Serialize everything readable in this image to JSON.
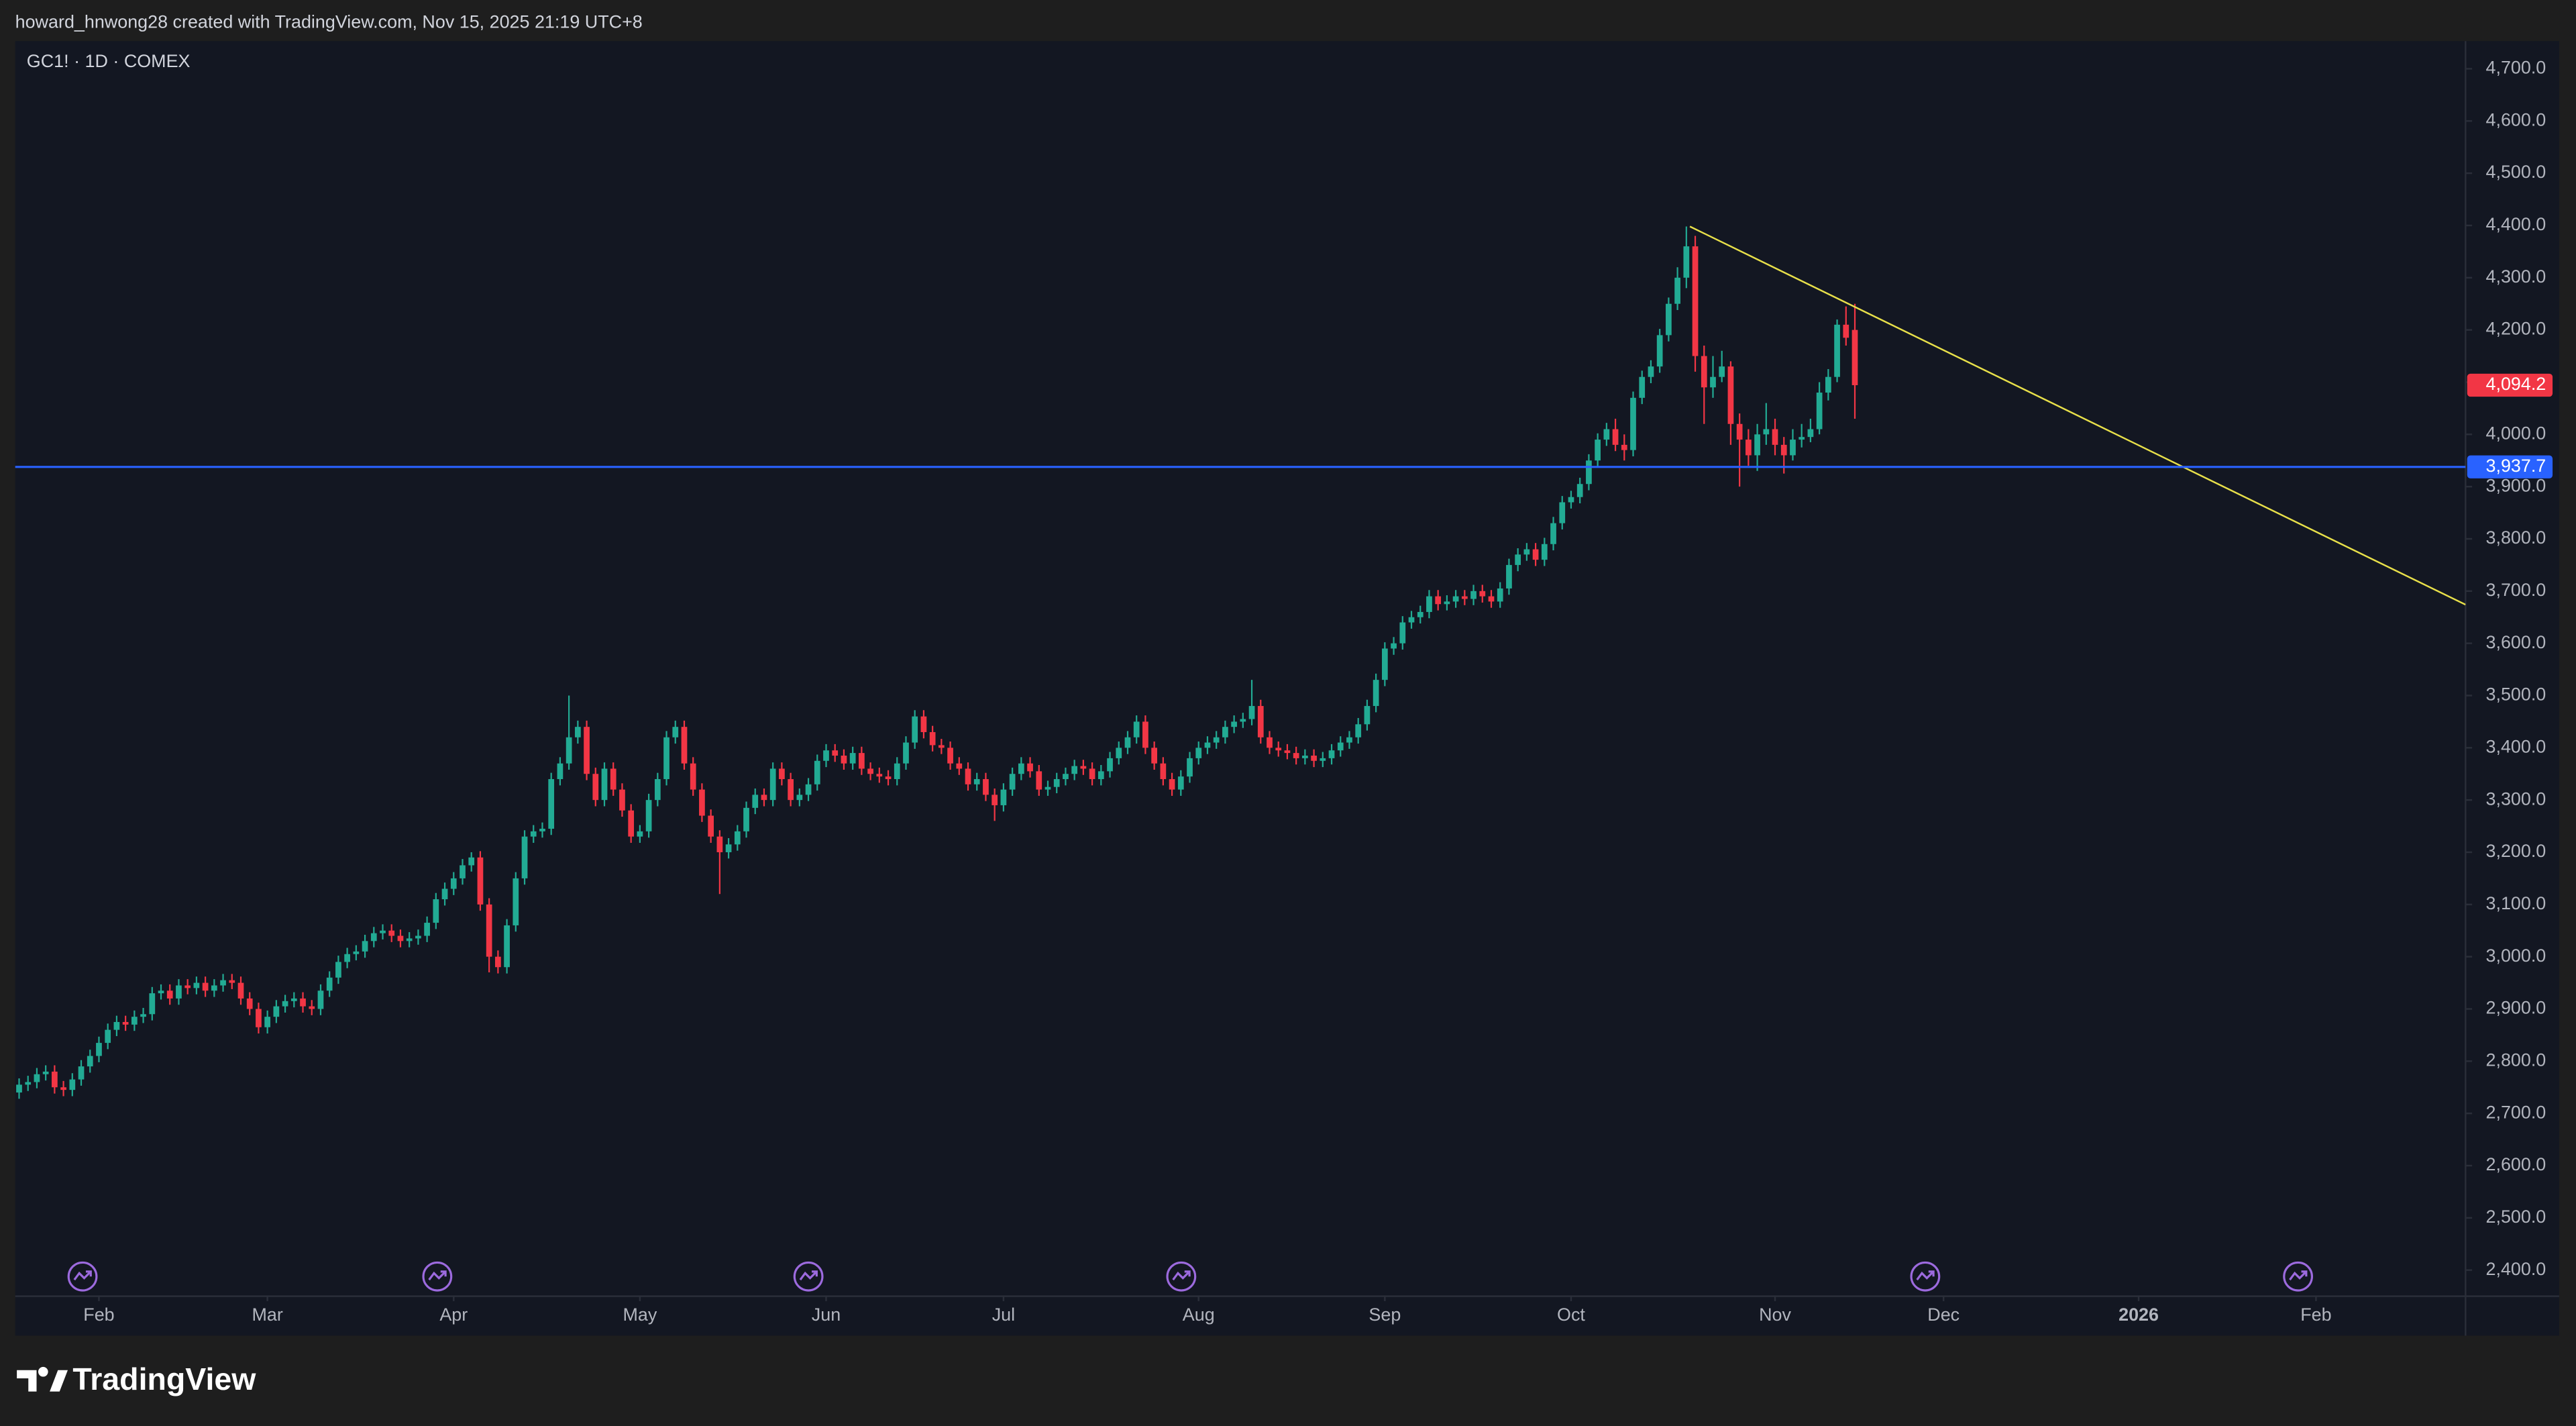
{
  "header": {
    "text": "howard_hnwong28 created with TradingView.com, Nov 15, 2025 21:19 UTC+8"
  },
  "footer": {
    "brand": "TradingView"
  },
  "chart_data": {
    "type": "candlestick",
    "title": "GC1! · 1D · COMEX",
    "up_color": "#22ab94",
    "down_color": "#f23645",
    "grid": false,
    "xlim": [
      -0.44,
      275.86
    ],
    "ylim": [
      2350,
      4753
    ],
    "xticks": [
      {
        "value": 9,
        "label": "Feb"
      },
      {
        "value": 28,
        "label": "Mar"
      },
      {
        "value": 49,
        "label": "Apr"
      },
      {
        "value": 70,
        "label": "May"
      },
      {
        "value": 91,
        "label": "Jun"
      },
      {
        "value": 111,
        "label": "Jul"
      },
      {
        "value": 133,
        "label": "Aug"
      },
      {
        "value": 154,
        "label": "Sep"
      },
      {
        "value": 175,
        "label": "Oct"
      },
      {
        "value": 198,
        "label": "Nov"
      },
      {
        "value": 217,
        "label": "Dec"
      },
      {
        "value": 239,
        "label": "2026"
      },
      {
        "value": 259,
        "label": "Feb"
      }
    ],
    "yticks": [
      {
        "value": 2400,
        "label": "2,400.0"
      },
      {
        "value": 2500,
        "label": "2,500.0"
      },
      {
        "value": 2600,
        "label": "2,600.0"
      },
      {
        "value": 2700,
        "label": "2,700.0"
      },
      {
        "value": 2800,
        "label": "2,800.0"
      },
      {
        "value": 2900,
        "label": "2,900.0"
      },
      {
        "value": 3000,
        "label": "3,000.0"
      },
      {
        "value": 3100,
        "label": "3,100.0"
      },
      {
        "value": 3200,
        "label": "3,200.0"
      },
      {
        "value": 3300,
        "label": "3,300.0"
      },
      {
        "value": 3400,
        "label": "3,400.0"
      },
      {
        "value": 3500,
        "label": "3,500.0"
      },
      {
        "value": 3600,
        "label": "3,600.0"
      },
      {
        "value": 3700,
        "label": "3,700.0"
      },
      {
        "value": 3800,
        "label": "3,800.0"
      },
      {
        "value": 3900,
        "label": "3,900.0"
      },
      {
        "value": 4000,
        "label": "4,000.0"
      },
      {
        "value": 4100,
        "label": "4,100.0"
      },
      {
        "value": 4200,
        "label": "4,200.0"
      },
      {
        "value": 4300,
        "label": "4,300.0"
      },
      {
        "value": 4400,
        "label": "4,400.0"
      },
      {
        "value": 4500,
        "label": "4,500.0"
      },
      {
        "value": 4600,
        "label": "4,600.0"
      },
      {
        "value": 4700,
        "label": "4,700.0"
      }
    ],
    "open": [
      2740,
      2755,
      2760,
      2775,
      2780,
      2750,
      2745,
      2765,
      2790,
      2810,
      2835,
      2860,
      2875,
      2870,
      2885,
      2890,
      2930,
      2935,
      2920,
      2945,
      2940,
      2950,
      2935,
      2945,
      2955,
      2950,
      2920,
      2900,
      2865,
      2885,
      2905,
      2915,
      2920,
      2905,
      2900,
      2935,
      2960,
      2990,
      3005,
      3010,
      3030,
      3045,
      3050,
      3040,
      3030,
      3035,
      3040,
      3065,
      3110,
      3130,
      3150,
      3175,
      3190,
      3100,
      3000,
      2980,
      3060,
      3150,
      3230,
      3240,
      3245,
      3340,
      3370,
      3420,
      3440,
      3350,
      3300,
      3360,
      3320,
      3280,
      3230,
      3240,
      3300,
      3340,
      3420,
      3440,
      3370,
      3320,
      3270,
      3230,
      3200,
      3215,
      3240,
      3285,
      3310,
      3300,
      3360,
      3340,
      3300,
      3310,
      3330,
      3375,
      3395,
      3385,
      3370,
      3390,
      3360,
      3350,
      3345,
      3340,
      3370,
      3410,
      3460,
      3430,
      3405,
      3400,
      3370,
      3360,
      3330,
      3340,
      3310,
      3290,
      3320,
      3350,
      3370,
      3355,
      3320,
      3325,
      3340,
      3350,
      3365,
      3360,
      3340,
      3355,
      3380,
      3400,
      3420,
      3450,
      3400,
      3370,
      3340,
      3320,
      3345,
      3380,
      3400,
      3410,
      3420,
      3440,
      3450,
      3455,
      3480,
      3420,
      3400,
      3395,
      3390,
      3380,
      3385,
      3375,
      3380,
      3395,
      3410,
      3420,
      3445,
      3480,
      3530,
      3590,
      3600,
      3640,
      3650,
      3660,
      3690,
      3675,
      3680,
      3690,
      3685,
      3700,
      3690,
      3680,
      3705,
      3750,
      3770,
      3780,
      3760,
      3790,
      3830,
      3870,
      3880,
      3905,
      3950,
      3990,
      4010,
      3980,
      3970,
      4070,
      4110,
      4130,
      4190,
      4250,
      4300,
      4360,
      4150,
      4090,
      4110,
      4130,
      4020,
      3990,
      3960,
      4000,
      4010,
      3980,
      3960,
      3990,
      3995,
      4010,
      4080,
      4110,
      4210,
      4200
    ],
    "high": [
      2767,
      2772,
      2787,
      2792,
      2792,
      2762,
      2777,
      2802,
      2822,
      2847,
      2872,
      2887,
      2887,
      2897,
      2902,
      2942,
      2947,
      2947,
      2957,
      2957,
      2962,
      2962,
      2957,
      2967,
      2967,
      2962,
      2932,
      2912,
      2897,
      2917,
      2927,
      2932,
      2932,
      2917,
      2947,
      2972,
      3002,
      3017,
      3022,
      3042,
      3057,
      3062,
      3062,
      3052,
      3047,
      3052,
      3077,
      3122,
      3142,
      3162,
      3187,
      3200,
      3202,
      3112,
      3012,
      3072,
      3162,
      3242,
      3252,
      3257,
      3352,
      3382,
      3500,
      3452,
      3452,
      3362,
      3372,
      3372,
      3332,
      3292,
      3252,
      3312,
      3352,
      3432,
      3452,
      3452,
      3382,
      3332,
      3282,
      3242,
      3227,
      3252,
      3297,
      3322,
      3322,
      3372,
      3372,
      3352,
      3322,
      3342,
      3387,
      3407,
      3407,
      3397,
      3402,
      3402,
      3372,
      3362,
      3357,
      3382,
      3422,
      3472,
      3472,
      3442,
      3417,
      3412,
      3382,
      3372,
      3352,
      3352,
      3322,
      3332,
      3362,
      3382,
      3382,
      3367,
      3337,
      3352,
      3362,
      3377,
      3377,
      3372,
      3367,
      3392,
      3412,
      3432,
      3462,
      3462,
      3412,
      3382,
      3352,
      3357,
      3392,
      3412,
      3422,
      3432,
      3452,
      3462,
      3467,
      3530,
      3492,
      3432,
      3412,
      3407,
      3402,
      3397,
      3397,
      3392,
      3407,
      3422,
      3432,
      3457,
      3492,
      3542,
      3602,
      3612,
      3652,
      3662,
      3672,
      3702,
      3702,
      3692,
      3702,
      3702,
      3712,
      3712,
      3702,
      3717,
      3762,
      3782,
      3792,
      3792,
      3802,
      3842,
      3882,
      3892,
      3917,
      3962,
      4002,
      4022,
      4030,
      4000,
      4082,
      4122,
      4142,
      4202,
      4262,
      4320,
      4398,
      4380,
      4170,
      4150,
      4160,
      4140,
      4040,
      4010,
      4020,
      4060,
      4030,
      3995,
      4010,
      4020,
      4030,
      4100,
      4125,
      4220,
      4245,
      4250
    ],
    "low": [
      2728,
      2743,
      2748,
      2763,
      2738,
      2733,
      2733,
      2753,
      2778,
      2798,
      2823,
      2848,
      2858,
      2858,
      2873,
      2878,
      2918,
      2908,
      2908,
      2928,
      2928,
      2923,
      2923,
      2933,
      2938,
      2908,
      2888,
      2853,
      2853,
      2873,
      2893,
      2903,
      2893,
      2888,
      2888,
      2923,
      2948,
      2978,
      2993,
      2998,
      3018,
      3033,
      3028,
      3018,
      3018,
      3023,
      3028,
      3053,
      3098,
      3118,
      3138,
      3163,
      3088,
      2970,
      2968,
      2968,
      3048,
      3138,
      3218,
      3228,
      3233,
      3328,
      3358,
      3408,
      3338,
      3288,
      3288,
      3308,
      3268,
      3218,
      3218,
      3228,
      3288,
      3328,
      3408,
      3358,
      3308,
      3258,
      3218,
      3120,
      3188,
      3203,
      3228,
      3273,
      3288,
      3288,
      3328,
      3288,
      3288,
      3298,
      3318,
      3363,
      3373,
      3358,
      3358,
      3348,
      3338,
      3333,
      3328,
      3328,
      3358,
      3398,
      3418,
      3393,
      3388,
      3358,
      3348,
      3318,
      3318,
      3298,
      3260,
      3278,
      3308,
      3338,
      3343,
      3308,
      3308,
      3313,
      3328,
      3338,
      3348,
      3328,
      3328,
      3343,
      3368,
      3388,
      3408,
      3388,
      3358,
      3328,
      3308,
      3308,
      3333,
      3368,
      3388,
      3398,
      3408,
      3428,
      3438,
      3443,
      3408,
      3388,
      3383,
      3378,
      3368,
      3368,
      3363,
      3363,
      3368,
      3383,
      3398,
      3408,
      3433,
      3468,
      3518,
      3578,
      3588,
      3628,
      3638,
      3648,
      3663,
      3663,
      3668,
      3673,
      3673,
      3678,
      3668,
      3668,
      3693,
      3738,
      3758,
      3748,
      3748,
      3778,
      3818,
      3858,
      3868,
      3893,
      3938,
      3978,
      3968,
      3950,
      3958,
      4058,
      4098,
      4118,
      4178,
      4238,
      4280,
      4120,
      4020,
      4070,
      4100,
      3980,
      3900,
      3940,
      3930,
      3980,
      3960,
      3925,
      3950,
      3975,
      3985,
      4000,
      4065,
      4100,
      4170,
      4030
    ],
    "close": [
      2755,
      2760,
      2775,
      2780,
      2750,
      2745,
      2765,
      2790,
      2810,
      2835,
      2860,
      2875,
      2870,
      2885,
      2890,
      2930,
      2935,
      2920,
      2945,
      2940,
      2950,
      2935,
      2945,
      2955,
      2950,
      2920,
      2900,
      2865,
      2885,
      2905,
      2915,
      2920,
      2905,
      2900,
      2935,
      2960,
      2990,
      3005,
      3010,
      3030,
      3045,
      3050,
      3040,
      3030,
      3035,
      3040,
      3065,
      3110,
      3130,
      3150,
      3175,
      3190,
      3100,
      3000,
      2980,
      3060,
      3150,
      3230,
      3240,
      3245,
      3340,
      3370,
      3420,
      3440,
      3350,
      3300,
      3360,
      3320,
      3280,
      3230,
      3240,
      3300,
      3340,
      3420,
      3440,
      3370,
      3320,
      3270,
      3230,
      3200,
      3215,
      3240,
      3285,
      3310,
      3300,
      3360,
      3340,
      3300,
      3310,
      3330,
      3375,
      3395,
      3385,
      3370,
      3390,
      3360,
      3350,
      3345,
      3340,
      3370,
      3410,
      3460,
      3430,
      3405,
      3400,
      3370,
      3360,
      3330,
      3340,
      3310,
      3290,
      3320,
      3350,
      3370,
      3355,
      3320,
      3325,
      3340,
      3350,
      3365,
      3360,
      3340,
      3355,
      3380,
      3400,
      3420,
      3450,
      3400,
      3370,
      3340,
      3320,
      3345,
      3380,
      3400,
      3410,
      3420,
      3440,
      3450,
      3455,
      3480,
      3420,
      3400,
      3395,
      3390,
      3380,
      3385,
      3375,
      3380,
      3395,
      3410,
      3420,
      3445,
      3480,
      3530,
      3590,
      3600,
      3640,
      3650,
      3660,
      3690,
      3675,
      3680,
      3690,
      3685,
      3700,
      3690,
      3680,
      3705,
      3750,
      3770,
      3780,
      3760,
      3790,
      3830,
      3870,
      3880,
      3905,
      3950,
      3990,
      4010,
      3980,
      3970,
      4070,
      4110,
      4130,
      4190,
      4250,
      4300,
      4360,
      4150,
      4090,
      4110,
      4130,
      4020,
      3990,
      3960,
      4000,
      4010,
      3980,
      3960,
      3990,
      3995,
      4010,
      4080,
      4110,
      4210,
      4185,
      4094.2
    ],
    "last_price_label": "4,094.2",
    "price_line": {
      "value": 3937.7,
      "label": "3,937.7",
      "color": "#2962ff"
    },
    "trendline": {
      "x": [
        188.4,
        275.86
      ],
      "y": [
        4398,
        3674
      ],
      "color": "#e8e04a"
    }
  }
}
